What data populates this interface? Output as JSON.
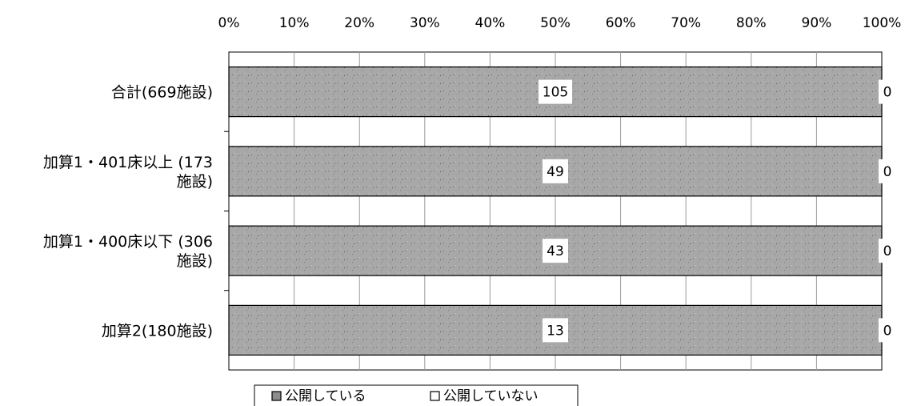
{
  "chart_data": {
    "type": "bar",
    "stacked_percent": true,
    "orientation": "horizontal",
    "x_axis_position": "top",
    "xlim": [
      0,
      100
    ],
    "x_tick_labels": [
      "0%",
      "10%",
      "20%",
      "30%",
      "40%",
      "50%",
      "60%",
      "70%",
      "80%",
      "90%",
      "100%"
    ],
    "categories": [
      [
        "合計(669施設)"
      ],
      [
        "加算1・401床以上 (173",
        "施設)"
      ],
      [
        "加算1・400床以下 (306",
        "施設)"
      ],
      [
        "加算2(180施設)"
      ]
    ],
    "series": [
      {
        "name": "公開している",
        "values": [
          105,
          49,
          43,
          13
        ],
        "color": "#a6a6a6"
      },
      {
        "name": "公開していない",
        "values": [
          0,
          0,
          0,
          0
        ],
        "color": "#ffffff"
      }
    ],
    "grid": true,
    "legend_position": "bottom"
  }
}
